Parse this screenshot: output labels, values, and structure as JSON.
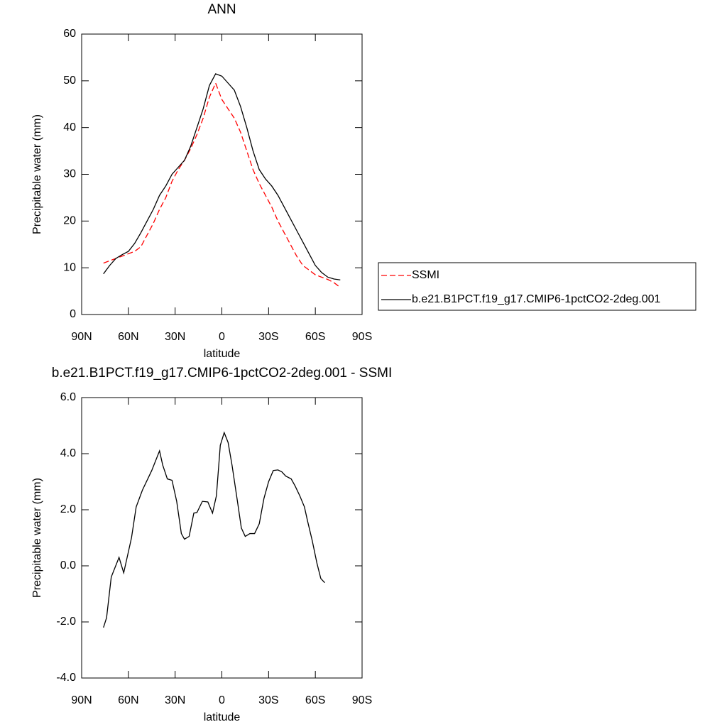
{
  "chart_data": [
    {
      "type": "line",
      "title": "ANN",
      "x": [
        76,
        72,
        68,
        64,
        60,
        56,
        52,
        48,
        44,
        40,
        36,
        32,
        28,
        24,
        20,
        16,
        12,
        8,
        4,
        0,
        -4,
        -8,
        -12,
        -16,
        -20,
        -24,
        -28,
        -32,
        -36,
        -40,
        -44,
        -48,
        -52,
        -56,
        -60,
        -64,
        -68,
        -72,
        -76
      ],
      "series": [
        {
          "name": "SSMI",
          "color": "#ff0000",
          "line_style": "dashed",
          "values": [
            11,
            11.5,
            12,
            12.5,
            13,
            13.5,
            14.5,
            17,
            19.5,
            22.5,
            25,
            28.5,
            31,
            33,
            35.5,
            38.5,
            42,
            46.5,
            49.5,
            46,
            44,
            42,
            39,
            35,
            31,
            28,
            25.5,
            23,
            20,
            17.5,
            15,
            12.5,
            10.5,
            9.5,
            8.5,
            8,
            7.5,
            6.8,
            5.8
          ]
        },
        {
          "name": "b.e21.B1PCT.f19_g17.CMIP6-1pctCO2-2deg.001",
          "color": "#000000",
          "line_style": "solid",
          "values": [
            8.7,
            10.5,
            12,
            12.8,
            13.5,
            15.2,
            17.5,
            20,
            22.5,
            25.5,
            27.5,
            30,
            31.5,
            33,
            36,
            40,
            44,
            49,
            51.5,
            51,
            49.5,
            48,
            44.5,
            40,
            35,
            31,
            29,
            27.5,
            25.5,
            23,
            20.5,
            18,
            15.5,
            13,
            10.5,
            9,
            8,
            7.6,
            7.4
          ]
        }
      ],
      "xlabel": "latitude",
      "ylabel": "Precipitable water (mm)",
      "xlim": [
        90,
        -90
      ],
      "xticks": [
        {
          "value": 90,
          "label": "90N"
        },
        {
          "value": 60,
          "label": "60N"
        },
        {
          "value": 30,
          "label": "30N"
        },
        0,
        {
          "value": -30,
          "label": "30S"
        },
        {
          "value": -60,
          "label": "60S"
        },
        {
          "value": -90,
          "label": "90S"
        }
      ],
      "ylim": [
        0,
        60
      ],
      "yticks": [
        0,
        10,
        20,
        30,
        40,
        50,
        60
      ],
      "legend": "right"
    },
    {
      "type": "line",
      "title": "b.e21.B1PCT.f19_g17.CMIP6-1pctCO2-2deg.001 - SSMI",
      "x": [
        76,
        74,
        71,
        66,
        63,
        58,
        55,
        51,
        45,
        40,
        38,
        35,
        32,
        29,
        26,
        24,
        21,
        18,
        16,
        12.5,
        9,
        6,
        3.5,
        1,
        -1.5,
        -4,
        -6.5,
        -10,
        -12.5,
        -15,
        -18,
        -21,
        -24,
        -27,
        -30,
        -33,
        -36,
        -38.5,
        -41,
        -44.5,
        -47,
        -50,
        -53,
        -55,
        -58,
        -61,
        -63.5,
        -66
      ],
      "series": [
        {
          "color": "#000000",
          "line_style": "solid",
          "values": [
            -2.2,
            -1.85,
            -0.4,
            0.3,
            -0.25,
            1.0,
            2.1,
            2.7,
            3.4,
            4.1,
            3.6,
            3.1,
            3.05,
            2.3,
            1.15,
            0.95,
            1.05,
            1.88,
            1.9,
            2.3,
            2.28,
            1.88,
            2.5,
            4.3,
            4.75,
            4.4,
            3.6,
            2.3,
            1.35,
            1.05,
            1.15,
            1.15,
            1.5,
            2.4,
            3.0,
            3.4,
            3.42,
            3.35,
            3.2,
            3.1,
            2.85,
            2.5,
            2.1,
            1.6,
            0.9,
            0.1,
            -0.45,
            -0.6
          ]
        }
      ],
      "xlabel": "latitude",
      "ylabel": "Precipitable water (mm)",
      "xlim": [
        90,
        -90
      ],
      "xticks": [
        {
          "value": 90,
          "label": "90N"
        },
        {
          "value": 60,
          "label": "60N"
        },
        {
          "value": 30,
          "label": "30N"
        },
        0,
        {
          "value": -30,
          "label": "30S"
        },
        {
          "value": -60,
          "label": "60S"
        },
        {
          "value": -90,
          "label": "90S"
        }
      ],
      "ylim": [
        -4,
        6
      ],
      "yticks": [
        {
          "value": -4,
          "label": "-4.0"
        },
        {
          "value": -2,
          "label": "-2.0"
        },
        {
          "value": 0,
          "label": "0.0"
        },
        {
          "value": 2,
          "label": "2.0"
        },
        {
          "value": 4,
          "label": "4.0"
        },
        {
          "value": 6,
          "label": "6.0"
        }
      ]
    }
  ]
}
